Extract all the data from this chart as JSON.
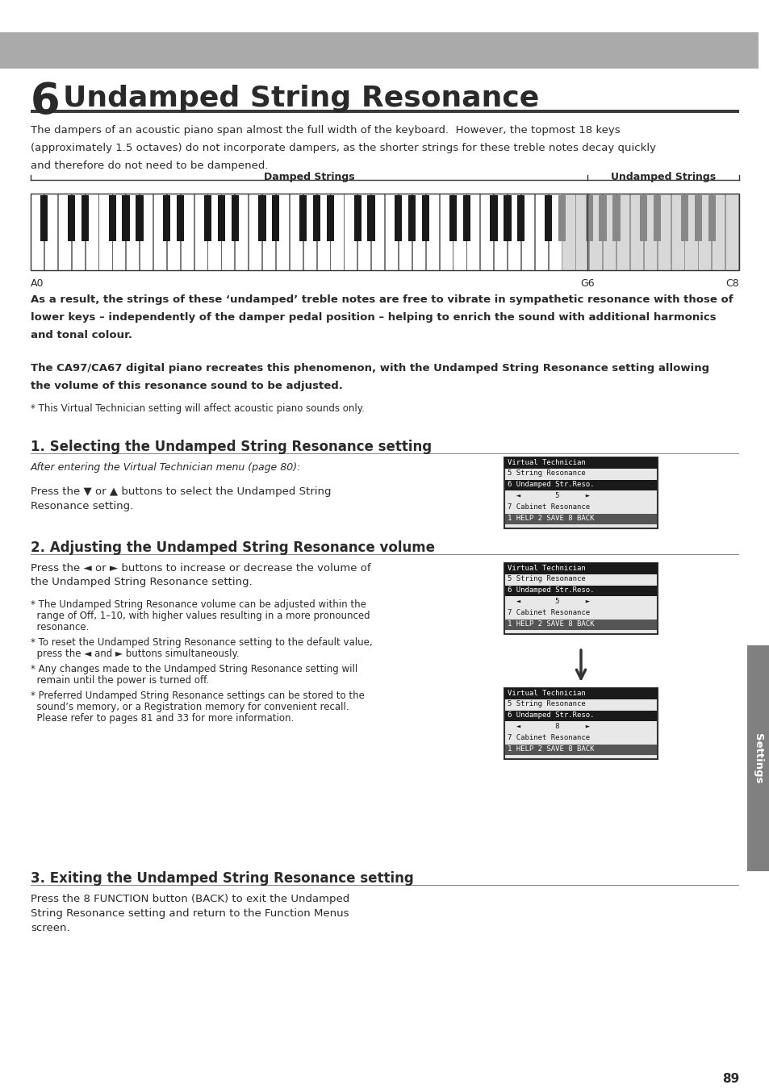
{
  "bg_color": "#ffffff",
  "header_bar_color": "#aaaaaa",
  "title_number": "6",
  "title_text": "Undamped String Resonance",
  "title_underline_color": "#3a3a3a",
  "body_text_color": "#2a2a2a",
  "section_header_color": "#2a2a2a",
  "right_tab_color": "#808080",
  "page_number": "89",
  "page_label": "Settings",
  "intro_paragraph_lines": [
    "The dampers of an acoustic piano span almost the full width of the keyboard.  However, the topmost 18 keys",
    "(approximately 1.5 octaves) do not incorporate dampers, as the shorter strings for these treble notes decay quickly",
    "and therefore do not need to be dampened."
  ],
  "keyboard_label_left": "Damped Strings",
  "keyboard_label_right": "Undamped Strings",
  "keyboard_note_left": "A0",
  "keyboard_note_g6": "G6",
  "keyboard_note_right": "C8",
  "middle_paragraph_lines": [
    "As a result, the strings of these ‘undamped’ treble notes are free to vibrate in sympathetic resonance with those of",
    "lower keys – independently of the damper pedal position – helping to enrich the sound with additional harmonics",
    "and tonal colour."
  ],
  "ca_paragraph_lines": [
    "The CA97/CA67 digital piano recreates this phenomenon, with the Undamped String Resonance setting allowing",
    "the volume of this resonance sound to be adjusted."
  ],
  "footnote": "* This Virtual Technician setting will affect acoustic piano sounds only.",
  "section1_title": "1. Selecting the Undamped String Resonance setting",
  "section1_italic": "After entering the Virtual Technician menu (page 80):",
  "section1_body_lines": [
    "Press the ▼ or ▲ buttons to select the Undamped String",
    "Resonance setting."
  ],
  "section2_title": "2. Adjusting the Undamped String Resonance volume",
  "section2_body_lines": [
    "Press the ◄ or ► buttons to increase or decrease the volume of",
    "the Undamped String Resonance setting."
  ],
  "section2_note1_lines": [
    "* The Undamped String Resonance volume can be adjusted within the",
    "  range of Off, 1–10, with higher values resulting in a more pronounced",
    "  resonance."
  ],
  "section2_note2_lines": [
    "* To reset the Undamped String Resonance setting to the default value,",
    "  press the ◄ and ► buttons simultaneously."
  ],
  "section2_note3_lines": [
    "* Any changes made to the Undamped String Resonance setting will",
    "  remain until the power is turned off."
  ],
  "section2_note4_lines": [
    "* Preferred Undamped String Resonance settings can be stored to the",
    "  sound’s memory, or a Registration memory for convenient recall.",
    "  Please refer to pages 81 and 33 for more information."
  ],
  "section3_title": "3. Exiting the Undamped String Resonance setting",
  "section3_body_lines": [
    "Press the 8 FUNCTION button (BACK) to exit the Undamped",
    "String Resonance setting and return to the Function Menus",
    "screen."
  ],
  "lcd_screen1": {
    "title_line": "Virtual Technician",
    "lines": [
      "5 String Resonance",
      "6 Undamped Str.Reso.",
      "  ◄        5      ►",
      "7 Cabinet Resonance",
      "1 HELP 2 SAVE 8 BACK"
    ],
    "highlight": 1
  },
  "lcd_screen2": {
    "title_line": "Virtual Technician",
    "lines": [
      "5 String Resonance",
      "6 Undamped Str.Reso.",
      "  ◄        5      ►",
      "7 Cabinet Resonance",
      "1 HELP 2 SAVE 8 BACK"
    ],
    "highlight": 1
  },
  "lcd_screen3": {
    "title_line": "Virtual Technician",
    "lines": [
      "5 String Resonance",
      "6 Undamped Str.Reso.",
      "  ◄        8      ►",
      "7 Cabinet Resonance",
      "1 HELP 2 SAVE 8 BACK"
    ],
    "highlight": 1
  }
}
